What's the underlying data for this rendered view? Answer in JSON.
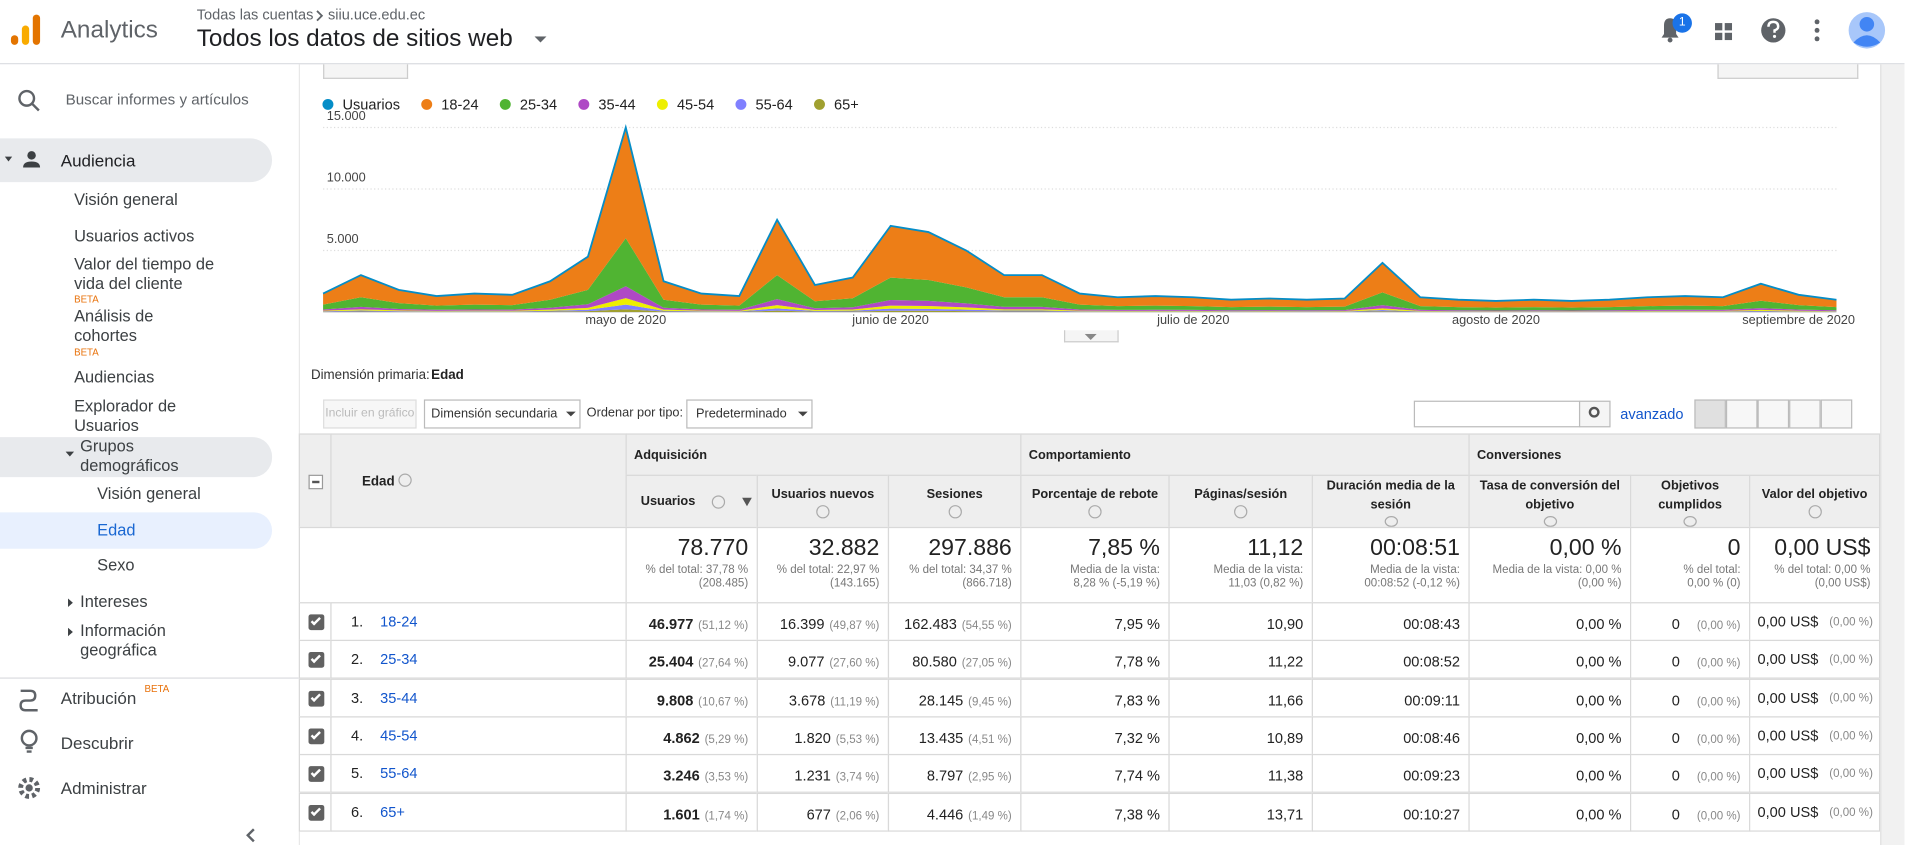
{
  "header": {
    "brand": "Analytics",
    "breadcrumb": [
      "Todas las cuentas",
      "siiu.uce.edu.ec"
    ],
    "view": "Todos los datos de sitios web",
    "notifications": 1
  },
  "sidebar": {
    "search": "Buscar informes y artículos",
    "section": "Audiencia",
    "items": [
      {
        "label": "Visión general"
      },
      {
        "label": "Usuarios activos"
      },
      {
        "label": "Valor del tiempo de vida del cliente",
        "badge": "BETA"
      },
      {
        "label": "Análisis de cohortes",
        "badge": "BETA"
      },
      {
        "label": "Audiencias"
      },
      {
        "label": "Explorador de Usuarios"
      },
      {
        "label": "Grupos demográficos"
      },
      {
        "label": "Visión general"
      },
      {
        "label": "Edad"
      },
      {
        "label": "Sexo"
      },
      {
        "label": "Intereses"
      },
      {
        "label": "Información geográfica"
      }
    ],
    "bottom": [
      {
        "label": "Atribución",
        "badge": "BETA"
      },
      {
        "label": "Descubrir"
      },
      {
        "label": "Administrar"
      }
    ]
  },
  "chart_data": {
    "type": "area",
    "categories": [
      null,
      null,
      null,
      null,
      null,
      null,
      null,
      null,
      "mayo de 2020",
      null,
      null,
      null,
      null,
      null,
      null,
      "junio de 2020",
      null,
      null,
      null,
      null,
      null,
      null,
      null,
      "julio de 2020",
      null,
      null,
      null,
      null,
      null,
      null,
      null,
      "agosto de 2020",
      null,
      null,
      null,
      null,
      null,
      null,
      null,
      "septiembre de 2020",
      null
    ],
    "ylim": [
      0,
      15000
    ],
    "yticks": [
      {
        "value": 5000,
        "label": "5.000"
      },
      {
        "value": 10000,
        "label": "10.000"
      },
      {
        "value": 15000,
        "label": "15.000"
      }
    ],
    "grid": true,
    "series": [
      {
        "name": "Usuarios",
        "color": "#058dc7",
        "values": [
          1500,
          3000,
          1800,
          1300,
          1500,
          1400,
          2500,
          4500,
          15000,
          2500,
          1500,
          1300,
          7500,
          2200,
          2800,
          7000,
          6500,
          5000,
          3000,
          3000,
          1500,
          1200,
          1300,
          1200,
          1000,
          1100,
          1000,
          1100,
          4000,
          1200,
          1000,
          900,
          1000,
          900,
          1000,
          1200,
          1300,
          1200,
          2300,
          1400,
          1000
        ]
      },
      {
        "name": "18-24",
        "color": "#ed7e17",
        "values": [
          900,
          1800,
          1080,
          780,
          900,
          840,
          1500,
          2700,
          9000,
          1500,
          900,
          780,
          4500,
          1320,
          1680,
          4200,
          3900,
          3000,
          1800,
          1800,
          900,
          720,
          780,
          720,
          600,
          660,
          600,
          660,
          2400,
          720,
          600,
          540,
          600,
          540,
          600,
          720,
          780,
          720,
          1380,
          840,
          600
        ]
      },
      {
        "name": "25-34",
        "color": "#50b432",
        "values": [
          390,
          780,
          470,
          340,
          390,
          365,
          650,
          1170,
          3900,
          650,
          390,
          340,
          1950,
          570,
          730,
          1820,
          1690,
          1300,
          780,
          780,
          390,
          310,
          340,
          310,
          260,
          285,
          260,
          285,
          1040,
          310,
          260,
          235,
          260,
          235,
          260,
          310,
          340,
          310,
          600,
          365,
          260
        ]
      },
      {
        "name": "35-44",
        "color": "#af49c5",
        "values": [
          100,
          200,
          115,
          85,
          100,
          90,
          160,
          290,
          975,
          160,
          100,
          85,
          490,
          145,
          180,
          455,
          420,
          325,
          200,
          200,
          100,
          80,
          85,
          80,
          65,
          70,
          65,
          70,
          260,
          80,
          65,
          60,
          65,
          60,
          65,
          80,
          85,
          80,
          150,
          90,
          65
        ]
      },
      {
        "name": "45-54",
        "color": "#edef00",
        "values": [
          50,
          100,
          65,
          45,
          50,
          50,
          90,
          160,
          525,
          90,
          50,
          45,
          260,
          75,
          100,
          245,
          230,
          175,
          100,
          100,
          50,
          40,
          45,
          40,
          35,
          40,
          35,
          40,
          140,
          40,
          35,
          30,
          35,
          30,
          35,
          40,
          45,
          40,
          80,
          50,
          35
        ]
      },
      {
        "name": "55-64",
        "color": "#8080ff",
        "values": [
          40,
          75,
          45,
          30,
          40,
          35,
          60,
          110,
          375,
          60,
          40,
          30,
          190,
          55,
          70,
          175,
          160,
          125,
          75,
          75,
          40,
          30,
          30,
          30,
          25,
          30,
          25,
          30,
          100,
          30,
          25,
          20,
          25,
          20,
          25,
          30,
          30,
          30,
          55,
          35,
          25
        ]
      },
      {
        "name": "65+",
        "color": "#a0a030",
        "values": [
          20,
          45,
          25,
          20,
          20,
          20,
          40,
          70,
          225,
          40,
          20,
          20,
          110,
          35,
          40,
          105,
          100,
          75,
          45,
          45,
          20,
          20,
          20,
          20,
          15,
          15,
          15,
          15,
          60,
          20,
          15,
          15,
          15,
          15,
          15,
          20,
          20,
          20,
          35,
          20,
          15
        ]
      }
    ]
  },
  "primary_dimension": {
    "label": "Dimensión primaria:",
    "value": "Edad"
  },
  "toolbar": {
    "plot": "Incluir en gráfico",
    "secondary": "Dimensión secundaria",
    "sort_label": "Ordenar por tipo:",
    "sort": "Predeterminado",
    "advanced": "avanzado"
  },
  "table": {
    "dimension": "Edad",
    "groups": [
      "Adquisición",
      "Comportamiento",
      "Conversiones"
    ],
    "columns": [
      "Usuarios",
      "Usuarios nuevos",
      "Sesiones",
      "Porcentaje de rebote",
      "Páginas/sesión",
      "Duración media de la sesión",
      "Tasa de conversión del objetivo",
      "Objetivos cumplidos",
      "Valor del objetivo"
    ],
    "totals": [
      {
        "value": "78.770",
        "note": [
          "% del total: 37,78 %",
          "(208.485)"
        ]
      },
      {
        "value": "32.882",
        "note": [
          "% del total: 22,97 %",
          "(143.165)"
        ]
      },
      {
        "value": "297.886",
        "note": [
          "% del total: 34,37 %",
          "(866.718)"
        ]
      },
      {
        "value": "7,85 %",
        "note": [
          "Media de la vista:",
          "8,28 % (-5,19 %)"
        ]
      },
      {
        "value": "11,12",
        "note": [
          "Media de la vista:",
          "11,03 (0,82 %)"
        ]
      },
      {
        "value": "00:08:51",
        "note": [
          "Media de la vista:",
          "00:08:52 (-0,12 %)"
        ]
      },
      {
        "value": "0,00 %",
        "note": [
          "Media de la vista: 0,00 %",
          "(0,00 %)"
        ]
      },
      {
        "value": "0",
        "note": [
          "% del total:",
          "0,00 % (0)"
        ]
      },
      {
        "value": "0,00 US$",
        "note": [
          "% del total: 0,00 %",
          "(0,00 US$)"
        ]
      }
    ],
    "rows": [
      {
        "index": "1.",
        "label": "18-24",
        "cells": [
          [
            "46.977",
            "(51,12 %)"
          ],
          [
            "16.399",
            "(49,87 %)"
          ],
          [
            "162.483",
            "(54,55 %)"
          ],
          [
            "7,95 %"
          ],
          [
            "10,90"
          ],
          [
            "00:08:43"
          ],
          [
            "0,00 %"
          ],
          [
            "0",
            "(0,00 %)"
          ],
          [
            "0,00 US$",
            "(0,00 %)"
          ]
        ]
      },
      {
        "index": "2.",
        "label": "25-34",
        "cells": [
          [
            "25.404",
            "(27,64 %)"
          ],
          [
            "9.077",
            "(27,60 %)"
          ],
          [
            "80.580",
            "(27,05 %)"
          ],
          [
            "7,78 %"
          ],
          [
            "11,22"
          ],
          [
            "00:08:52"
          ],
          [
            "0,00 %"
          ],
          [
            "0",
            "(0,00 %)"
          ],
          [
            "0,00 US$",
            "(0,00 %)"
          ]
        ]
      },
      {
        "index": "3.",
        "label": "35-44",
        "cells": [
          [
            "9.808",
            "(10,67 %)"
          ],
          [
            "3.678",
            "(11,19 %)"
          ],
          [
            "28.145",
            "(9,45 %)"
          ],
          [
            "7,83 %"
          ],
          [
            "11,66"
          ],
          [
            "00:09:11"
          ],
          [
            "0,00 %"
          ],
          [
            "0",
            "(0,00 %)"
          ],
          [
            "0,00 US$",
            "(0,00 %)"
          ]
        ]
      },
      {
        "index": "4.",
        "label": "45-54",
        "cells": [
          [
            "4.862",
            "(5,29 %)"
          ],
          [
            "1.820",
            "(5,53 %)"
          ],
          [
            "13.435",
            "(4,51 %)"
          ],
          [
            "7,32 %"
          ],
          [
            "10,89"
          ],
          [
            "00:08:46"
          ],
          [
            "0,00 %"
          ],
          [
            "0",
            "(0,00 %)"
          ],
          [
            "0,00 US$",
            "(0,00 %)"
          ]
        ]
      },
      {
        "index": "5.",
        "label": "55-64",
        "cells": [
          [
            "3.246",
            "(3,53 %)"
          ],
          [
            "1.231",
            "(3,74 %)"
          ],
          [
            "8.797",
            "(2,95 %)"
          ],
          [
            "7,74 %"
          ],
          [
            "11,38"
          ],
          [
            "00:09:23"
          ],
          [
            "0,00 %"
          ],
          [
            "0",
            "(0,00 %)"
          ],
          [
            "0,00 US$",
            "(0,00 %)"
          ]
        ]
      },
      {
        "index": "6.",
        "label": "65+",
        "cells": [
          [
            "1.601",
            "(1,74 %)"
          ],
          [
            "677",
            "(2,06 %)"
          ],
          [
            "4.446",
            "(1,49 %)"
          ],
          [
            "7,38 %"
          ],
          [
            "13,71"
          ],
          [
            "00:10:27"
          ],
          [
            "0,00 %"
          ],
          [
            "0",
            "(0,00 %)"
          ],
          [
            "0,00 US$",
            "(0,00 %)"
          ]
        ]
      }
    ]
  }
}
